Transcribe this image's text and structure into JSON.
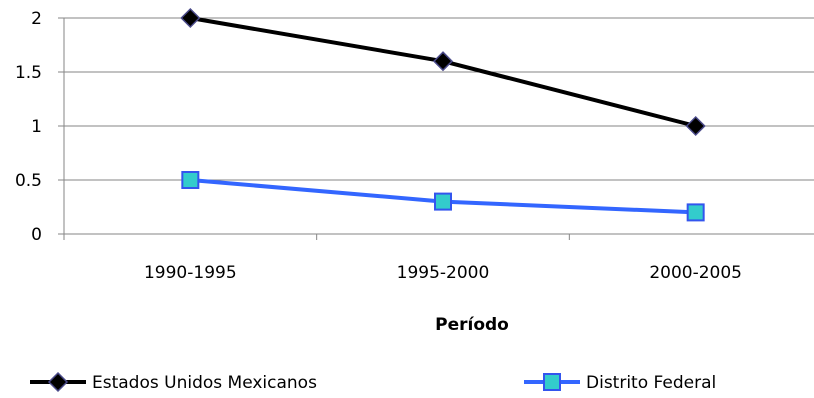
{
  "chart_data": {
    "type": "line",
    "title": "",
    "xlabel": "Período",
    "ylabel": "",
    "categories": [
      "1990-1995",
      "1995-2000",
      "2000-2005"
    ],
    "ylim": [
      0,
      2
    ],
    "yticks": [
      0,
      0.5,
      1,
      1.5,
      2
    ],
    "ytick_labels": [
      "0",
      "0.5",
      "1",
      "1.5",
      "2"
    ],
    "grid": true,
    "legend_position": "bottom",
    "series": [
      {
        "name": "Estados Unidos Mexicanos",
        "values": [
          2.0,
          1.6,
          1.0
        ],
        "color": "#000000",
        "marker": "diamond",
        "marker_fill": "#000000",
        "marker_edge": "#4a4a8a"
      },
      {
        "name": "Distrito Federal",
        "values": [
          0.5,
          0.3,
          0.2
        ],
        "color": "#3366ff",
        "marker": "square",
        "marker_fill": "#33cccc",
        "marker_edge": "#3355ee"
      }
    ]
  }
}
